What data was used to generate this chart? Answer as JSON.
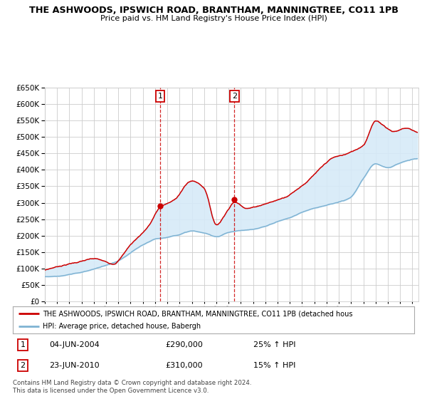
{
  "title": "THE ASHWOODS, IPSWICH ROAD, BRANTHAM, MANNINGTREE, CO11 1PB",
  "subtitle": "Price paid vs. HM Land Registry's House Price Index (HPI)",
  "legend_line1": "THE ASHWOODS, IPSWICH ROAD, BRANTHAM, MANNINGTREE, CO11 1PB (detached hous",
  "legend_line2": "HPI: Average price, detached house, Babergh",
  "table_row1": [
    "1",
    "04-JUN-2004",
    "£290,000",
    "25% ↑ HPI"
  ],
  "table_row2": [
    "2",
    "23-JUN-2010",
    "£310,000",
    "15% ↑ HPI"
  ],
  "footer1": "Contains HM Land Registry data © Crown copyright and database right 2024.",
  "footer2": "This data is licensed under the Open Government Licence v3.0.",
  "marker1_year": 2004.42,
  "marker2_year": 2010.47,
  "marker1_price": 290000,
  "marker2_price": 310000,
  "ylim": [
    0,
    650000
  ],
  "xlim_start": 1995.0,
  "xlim_end": 2025.5,
  "red_color": "#cc0000",
  "blue_color": "#7fb3d3",
  "grid_color": "#cccccc",
  "bg_color": "#ffffff",
  "shade_color": "#d6eaf8",
  "hpi_years": [
    1995,
    1996,
    1997,
    1998,
    1999,
    2000,
    2001,
    2002,
    2003,
    2004,
    2005,
    2006,
    2007,
    2008,
    2009,
    2010,
    2011,
    2012,
    2013,
    2014,
    2015,
    2016,
    2017,
    2018,
    2019,
    2020,
    2021,
    2022,
    2023,
    2024,
    2025
  ],
  "hpi_vals": [
    75000,
    77000,
    82000,
    89000,
    99000,
    110000,
    122000,
    145000,
    168000,
    185000,
    192000,
    202000,
    212000,
    205000,
    195000,
    208000,
    214000,
    216000,
    225000,
    240000,
    252000,
    268000,
    282000,
    292000,
    300000,
    315000,
    370000,
    415000,
    405000,
    420000,
    430000
  ],
  "red_keypoints_x": [
    1995.0,
    1997.5,
    1999.0,
    2000.5,
    2002.0,
    2003.5,
    2004.42,
    2005.5,
    2007.0,
    2008.0,
    2009.0,
    2010.0,
    2010.47,
    2011.5,
    2013.0,
    2014.5,
    2016.0,
    2017.5,
    2018.5,
    2019.5,
    2021.0,
    2022.0,
    2022.5,
    2023.5,
    2024.5,
    2025.0
  ],
  "red_keypoints_y": [
    95000,
    120000,
    130000,
    115000,
    175000,
    235000,
    290000,
    310000,
    370000,
    350000,
    240000,
    290000,
    310000,
    295000,
    310000,
    330000,
    370000,
    420000,
    450000,
    460000,
    490000,
    565000,
    555000,
    535000,
    545000,
    540000
  ]
}
